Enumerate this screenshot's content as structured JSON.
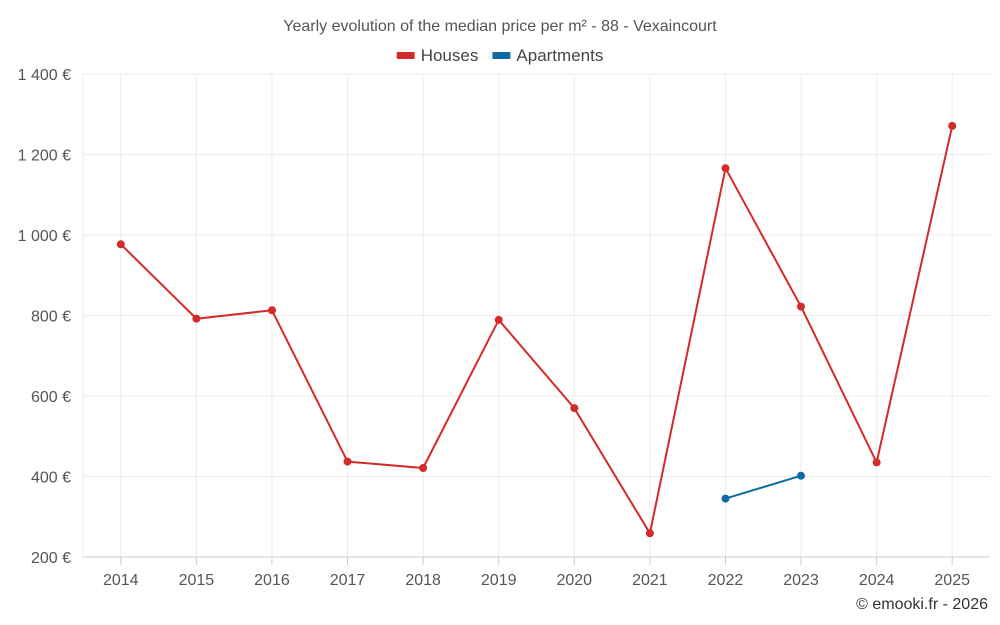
{
  "chart_data": {
    "type": "line",
    "title": "Yearly evolution of the median price per m² - 88 - Vexaincourt",
    "xlabel": "",
    "ylabel": "",
    "categories": [
      "2014",
      "2015",
      "2016",
      "2017",
      "2018",
      "2019",
      "2020",
      "2021",
      "2022",
      "2023",
      "2024",
      "2025"
    ],
    "ylim": [
      200,
      1400
    ],
    "yticks": [
      200,
      400,
      600,
      800,
      1000,
      1200,
      1400
    ],
    "ytick_labels": [
      "200 €",
      "400 €",
      "600 €",
      "800 €",
      "1 000 €",
      "1 200 €",
      "1 400 €"
    ],
    "grid": true,
    "legend_position": "top-center",
    "series": [
      {
        "name": "Houses",
        "color": "#d42a2a",
        "values": [
          977,
          792,
          813,
          437,
          421,
          789,
          570,
          259,
          1166,
          822,
          435,
          1271
        ]
      },
      {
        "name": "Apartments",
        "color": "#106ba3",
        "values": [
          null,
          null,
          null,
          null,
          null,
          null,
          null,
          null,
          345,
          402,
          null,
          null
        ]
      }
    ]
  },
  "credit": "© emooki.fr - 2026"
}
